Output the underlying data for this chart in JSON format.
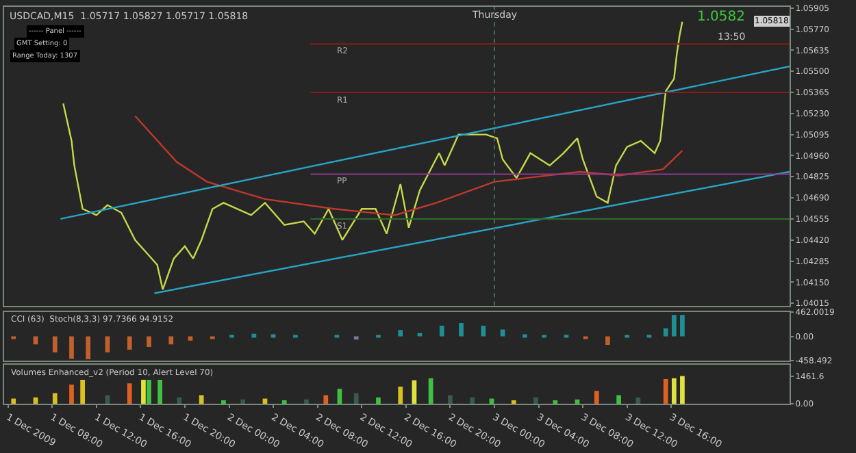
{
  "chart_data": [
    {
      "type": "line",
      "annotations": [
        "USDCAD,M15  1.05717 1.05827 1.05717 1.05818",
        "1.0582",
        "13:50",
        "------ Panel ------",
        "GMT Setting: 0",
        "Range Today: 1307",
        "1.05818"
      ],
      "xlim": [
        "2009-12-01T03:39",
        "2009-12-04T02:42"
      ],
      "ylim": [
        1.04,
        1.05913
      ],
      "tick_labels": "y",
      "grid": false,
      "yticks": [
        {
          "value": 1.05905,
          "label": "1.05905"
        },
        {
          "value": 1.0577,
          "label": "1.05770"
        },
        {
          "value": 1.05635,
          "label": "1.05635"
        },
        {
          "value": 1.055,
          "label": "1.05500"
        },
        {
          "value": 1.05365,
          "label": "1.05365"
        },
        {
          "value": 1.0523,
          "label": "1.05230"
        },
        {
          "value": 1.05095,
          "label": "1.05095"
        },
        {
          "value": 1.0496,
          "label": "1.04960"
        },
        {
          "value": 1.04825,
          "label": "1.04825"
        },
        {
          "value": 1.0469,
          "label": "1.04690"
        },
        {
          "value": 1.04555,
          "label": "1.04555"
        },
        {
          "value": 1.0442,
          "label": "1.04420"
        },
        {
          "value": 1.04285,
          "label": "1.04285"
        },
        {
          "value": 1.0415,
          "label": "1.04150"
        },
        {
          "value": 1.04015,
          "label": "1.04015"
        }
      ],
      "series": [
        {
          "color": "#c8d84a",
          "x": [
            "2009-12-01T09:00",
            "2009-12-01T09:45",
            "2009-12-01T10:00",
            "2009-12-01T10:45",
            "2009-12-01T12:00",
            "2009-12-01T13:00",
            "2009-12-01T14:15",
            "2009-12-01T15:30",
            "2009-12-01T16:30",
            "2009-12-01T17:30",
            "2009-12-01T18:00",
            "2009-12-01T19:00",
            "2009-12-01T20:00",
            "2009-12-01T20:45",
            "2009-12-01T21:30",
            "2009-12-01T22:30",
            "2009-12-01T23:30",
            "2009-12-02T02:00",
            "2009-12-02T03:15",
            "2009-12-02T05:00",
            "2009-12-02T06:45",
            "2009-12-02T07:45",
            "2009-12-02T09:00",
            "2009-12-02T10:15",
            "2009-12-02T12:00",
            "2009-12-02T13:15",
            "2009-12-02T14:15",
            "2009-12-02T15:30",
            "2009-12-02T16:15",
            "2009-12-02T17:15",
            "2009-12-02T19:00",
            "2009-12-02T19:30",
            "2009-12-02T20:45",
            "2009-12-02T23:15",
            "2009-12-03T00:15",
            "2009-12-03T00:45",
            "2009-12-03T02:00",
            "2009-12-03T03:15",
            "2009-12-03T05:00",
            "2009-12-03T06:15",
            "2009-12-03T07:30",
            "2009-12-03T08:00",
            "2009-12-03T09:15",
            "2009-12-03T10:15",
            "2009-12-03T11:00",
            "2009-12-03T12:00",
            "2009-12-03T13:15",
            "2009-12-03T14:30",
            "2009-12-03T15:00",
            "2009-12-03T15:30",
            "2009-12-03T16:15",
            "2009-12-03T16:30",
            "2009-12-03T16:45",
            "2009-12-03T17:00"
          ],
          "values": [
            1.05294,
            1.05055,
            1.04897,
            1.04619,
            1.04579,
            1.04643,
            1.04595,
            1.0442,
            1.04341,
            1.04261,
            1.04103,
            1.04301,
            1.0438,
            1.04301,
            1.0442,
            1.04619,
            1.04658,
            1.04579,
            1.04658,
            1.04516,
            1.04539,
            1.0446,
            1.04619,
            1.0442,
            1.04619,
            1.04619,
            1.0446,
            1.04778,
            1.04499,
            1.04738,
            1.04976,
            1.04897,
            1.05095,
            1.05095,
            1.05071,
            1.04936,
            1.04817,
            1.04976,
            1.04897,
            1.04976,
            1.05071,
            1.04936,
            1.04698,
            1.04658,
            1.04897,
            1.05016,
            1.05055,
            1.04976,
            1.05055,
            1.05373,
            1.05452,
            1.05611,
            1.0573,
            1.05818
          ]
        },
        {
          "color": "#c0392b",
          "x": [
            "2009-12-01T15:30",
            "2009-12-01T19:15",
            "2009-12-01T22:00",
            "2009-12-02T03:15",
            "2009-12-02T09:30",
            "2009-12-02T15:00",
            "2009-12-02T18:45",
            "2009-12-03T00:00",
            "2009-12-03T07:45",
            "2009-12-03T11:15",
            "2009-12-03T15:15",
            "2009-12-03T17:00"
          ],
          "values": [
            1.05214,
            1.0492,
            1.04793,
            1.04682,
            1.04619,
            1.04579,
            1.04658,
            1.04793,
            1.04857,
            1.04833,
            1.04873,
            1.04992
          ]
        },
        {
          "color": "#29a3c4",
          "x": [
            "2009-12-01T08:45",
            "2009-12-04T02:42"
          ],
          "values": [
            1.04555,
            1.05532
          ]
        },
        {
          "color": "#29a3c4",
          "x": [
            "2009-12-01T17:15",
            "2009-12-04T02:42"
          ],
          "values": [
            1.04079,
            1.04857
          ]
        }
      ],
      "ref_lines": [
        {
          "axis": "x",
          "value": "2009-12-03T00:00",
          "label": "Thursday",
          "color": "#4a6a5a",
          "line_style": "dotted"
        },
        {
          "axis": "y",
          "value": 1.05675,
          "label": "R2",
          "color": "#8b1a1a"
        },
        {
          "axis": "y",
          "value": 1.05365,
          "label": "R1",
          "color": "#8b1a1a"
        },
        {
          "axis": "y",
          "value": 1.04841,
          "label": "PP",
          "color": "#8b3a8b"
        },
        {
          "axis": "y",
          "value": 1.04555,
          "label": "S1",
          "color": "#2d6b2d"
        }
      ]
    },
    {
      "type": "bar",
      "annotations": [
        "CCI (63)  Stoch(8,3,3) 97.7366 94.9152"
      ],
      "xlim": [
        "2009-12-01T03:39",
        "2009-12-04T02:42"
      ],
      "ylim": [
        -458.492,
        462.0019
      ],
      "tick_labels": "y",
      "grid": false,
      "yticks": [
        462.0019,
        {
          "value": 0,
          "label": "0.00"
        },
        -458.492
      ],
      "x": [
        "2009-12-01T04:30",
        "2009-12-01T06:30",
        "2009-12-01T08:15",
        "2009-12-01T09:45",
        "2009-12-01T11:15",
        "2009-12-01T13:00",
        "2009-12-01T15:00",
        "2009-12-01T16:45",
        "2009-12-01T18:45",
        "2009-12-01T20:30",
        "2009-12-01T22:30",
        "2009-12-02T00:15",
        "2009-12-02T02:15",
        "2009-12-02T04:00",
        "2009-12-02T06:00",
        "2009-12-02T09:45",
        "2009-12-02T11:30",
        "2009-12-02T13:30",
        "2009-12-02T15:30",
        "2009-12-02T17:15",
        "2009-12-02T19:15",
        "2009-12-02T21:00",
        "2009-12-02T23:00",
        "2009-12-03T00:45",
        "2009-12-03T02:45",
        "2009-12-03T04:30",
        "2009-12-03T06:30",
        "2009-12-03T08:15",
        "2009-12-03T10:15",
        "2009-12-03T12:00",
        "2009-12-03T14:00",
        "2009-12-03T15:30",
        "2009-12-03T16:15",
        "2009-12-03T17:00"
      ],
      "values": [
        -50,
        -150,
        -300,
        -420,
        -430,
        -300,
        -250,
        -200,
        -150,
        -80,
        -30,
        30,
        50,
        40,
        10,
        20,
        -60,
        20,
        120,
        60,
        200,
        250,
        200,
        130,
        40,
        20,
        30,
        -40,
        -160,
        10,
        30,
        150,
        400,
        400
      ],
      "colors": [
        "#c0602a",
        "#c0602a",
        "#c0602a",
        "#c0602a",
        "#c0602a",
        "#c0602a",
        "#c0602a",
        "#c0602a",
        "#c0602a",
        "#c0602a",
        "#c0602a",
        "#1f8f96",
        "#1f8f96",
        "#1f8f96",
        "#1f8f96",
        "#1f8f96",
        "#7a7a9a",
        "#1f8f96",
        "#1f8f96",
        "#1f8f96",
        "#1f8f96",
        "#1f8f96",
        "#1f8f96",
        "#1f8f96",
        "#1f8f96",
        "#1f8f96",
        "#1f8f96",
        "#c0602a",
        "#c0602a",
        "#1f8f96",
        "#1f8f96",
        "#1f8f96",
        "#1f8f96",
        "#1f8f96"
      ]
    },
    {
      "type": "bar",
      "annotations": [
        "Volumes Enhanced_v2 (Period 10, Alert Level 70)"
      ],
      "xlim": [
        "2009-12-01T03:39",
        "2009-12-04T02:42"
      ],
      "ylim": [
        0,
        2050
      ],
      "grid": false,
      "yticks": [
        {
          "value": 1461.6,
          "label": "1461.6"
        },
        {
          "value": 0,
          "label": "0.00"
        }
      ],
      "xticks": [
        {
          "value": "2009-12-01T04:00",
          "label": "1 Dec 2009"
        },
        {
          "value": "2009-12-01T08:00",
          "label": "1 Dec 08:00"
        },
        {
          "value": "2009-12-01T12:00",
          "label": "1 Dec 12:00"
        },
        {
          "value": "2009-12-01T16:00",
          "label": "1 Dec 16:00"
        },
        {
          "value": "2009-12-01T20:00",
          "label": "1 Dec 20:00"
        },
        {
          "value": "2009-12-02T00:00",
          "label": "2 Dec 00:00"
        },
        {
          "value": "2009-12-02T04:00",
          "label": "2 Dec 04:00"
        },
        {
          "value": "2009-12-02T08:00",
          "label": "2 Dec 08:00"
        },
        {
          "value": "2009-12-02T12:00",
          "label": "2 Dec 12:00"
        },
        {
          "value": "2009-12-02T16:00",
          "label": "2 Dec 16:00"
        },
        {
          "value": "2009-12-02T20:00",
          "label": "2 Dec 20:00"
        },
        {
          "value": "2009-12-03T00:00",
          "label": "3 Dec 00:00"
        },
        {
          "value": "2009-12-03T04:00",
          "label": "3 Dec 04:00"
        },
        {
          "value": "2009-12-03T08:00",
          "label": "3 Dec 08:00"
        },
        {
          "value": "2009-12-03T12:00",
          "label": "3 Dec 12:00"
        },
        {
          "value": "2009-12-03T16:00",
          "label": "3 Dec 16:00"
        }
      ],
      "x": [
        "2009-12-01T04:30",
        "2009-12-01T06:30",
        "2009-12-01T08:15",
        "2009-12-01T09:45",
        "2009-12-01T10:45",
        "2009-12-01T13:00",
        "2009-12-01T15:00",
        "2009-12-01T16:15",
        "2009-12-01T16:45",
        "2009-12-01T17:45",
        "2009-12-01T19:30",
        "2009-12-01T21:30",
        "2009-12-01T23:30",
        "2009-12-02T01:15",
        "2009-12-02T03:15",
        "2009-12-02T05:00",
        "2009-12-02T07:00",
        "2009-12-02T08:45",
        "2009-12-02T10:00",
        "2009-12-02T11:30",
        "2009-12-02T13:30",
        "2009-12-02T15:30",
        "2009-12-02T16:45",
        "2009-12-02T18:15",
        "2009-12-02T20:00",
        "2009-12-02T22:00",
        "2009-12-02T23:45",
        "2009-12-03T01:45",
        "2009-12-03T03:45",
        "2009-12-03T05:30",
        "2009-12-03T07:30",
        "2009-12-03T09:15",
        "2009-12-03T11:15",
        "2009-12-03T13:00",
        "2009-12-03T15:30",
        "2009-12-03T16:15",
        "2009-12-03T17:00"
      ],
      "values": [
        270,
        340,
        560,
        1010,
        1300,
        450,
        1080,
        1350,
        1400,
        1400,
        340,
        450,
        180,
        225,
        270,
        180,
        225,
        450,
        790,
        560,
        340,
        900,
        1240,
        1350,
        450,
        340,
        270,
        180,
        340,
        180,
        225,
        675,
        450,
        340,
        1300,
        1350,
        1461.6
      ],
      "colors": [
        "#d8c020",
        "#d8c020",
        "#d8c020",
        "#e06020",
        "#e0c020",
        "#3a5a50",
        "#e06020",
        "#e0e040",
        "#40c040",
        "#40c040",
        "#3a5a50",
        "#d8c020",
        "#40c040",
        "#3a5a50",
        "#d8c020",
        "#40c040",
        "#3a5a50",
        "#e06020",
        "#40c040",
        "#3a5a50",
        "#40c040",
        "#d8c020",
        "#e0e040",
        "#40c040",
        "#3a5a50",
        "#3a5a50",
        "#40c040",
        "#d8c020",
        "#3a5a50",
        "#40c040",
        "#40c040",
        "#e06020",
        "#40c040",
        "#3a5a50",
        "#e06020",
        "#e0e040",
        "#e0e040"
      ]
    }
  ]
}
